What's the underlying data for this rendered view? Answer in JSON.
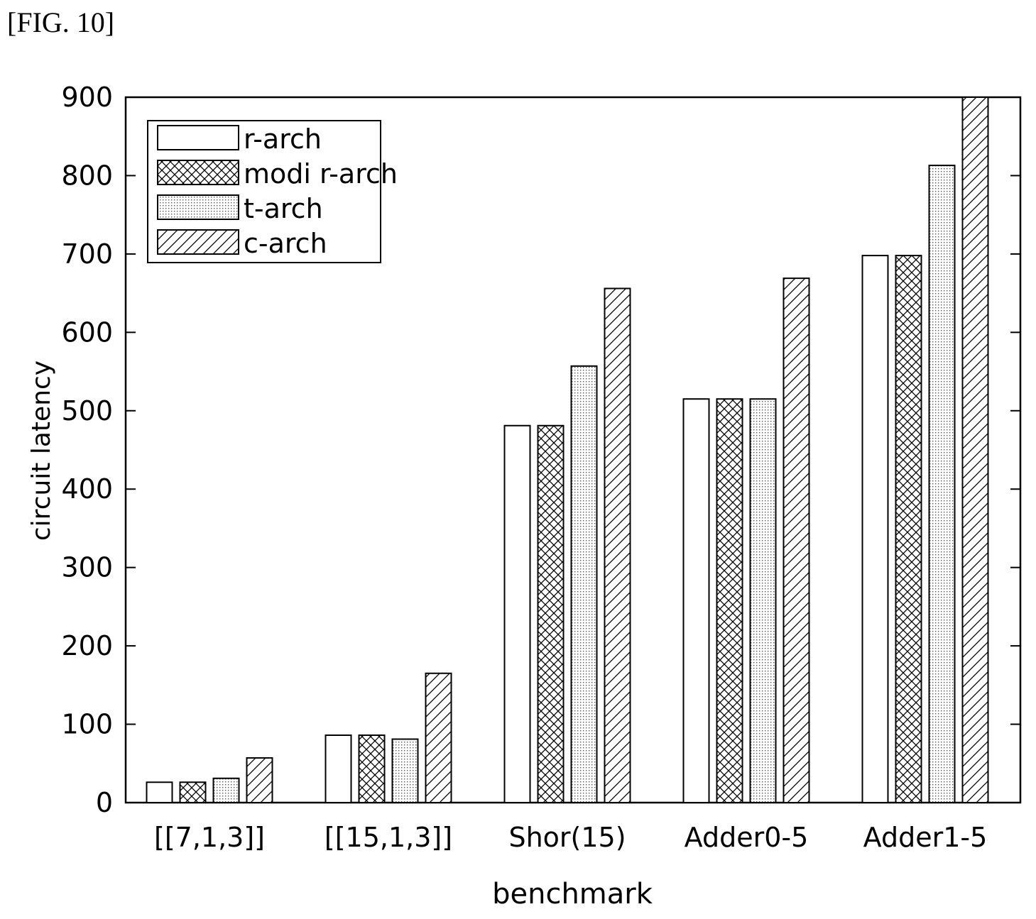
{
  "figure_label": "[FIG. 10]",
  "chart_data": {
    "type": "bar",
    "title": "",
    "xlabel": "benchmark",
    "ylabel": "circuit latency",
    "ylim": [
      0,
      900
    ],
    "yticks": [
      0,
      100,
      200,
      300,
      400,
      500,
      600,
      700,
      800,
      900
    ],
    "categories": [
      "[[7,1,3]]",
      "[[15,1,3]]",
      "Shor(15)",
      "Adder0-5",
      "Adder1-5"
    ],
    "series": [
      {
        "name": "r-arch",
        "pattern": "blank",
        "values": [
          26,
          86,
          481,
          515,
          698
        ]
      },
      {
        "name": "modi r-arch",
        "pattern": "crosshatch",
        "values": [
          26,
          86,
          481,
          515,
          698
        ]
      },
      {
        "name": "t-arch",
        "pattern": "dots",
        "values": [
          31,
          81,
          557,
          515,
          813
        ]
      },
      {
        "name": "c-arch",
        "pattern": "diagonal",
        "values": [
          57,
          165,
          656,
          669,
          900
        ]
      }
    ],
    "grid": false,
    "legend_position": "top-left",
    "colors": {
      "stroke": "#000000",
      "fill": "#ffffff"
    }
  }
}
